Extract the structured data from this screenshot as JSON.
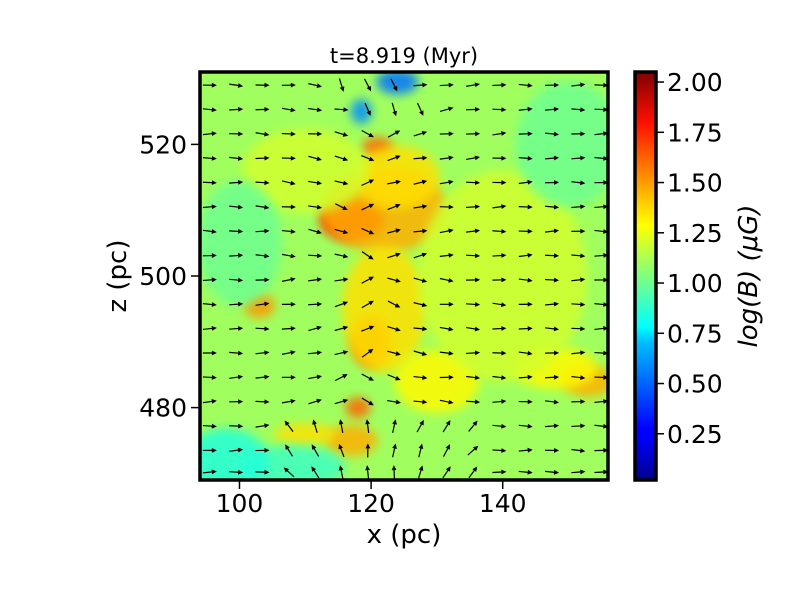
{
  "chart_data": {
    "type": "heatmap",
    "title": "t=8.919 (Myr)",
    "xlabel": "x (pc)",
    "ylabel": "z (pc)",
    "xlim": [
      94,
      156
    ],
    "ylim": [
      469,
      531
    ],
    "xticks": [
      100,
      120,
      140
    ],
    "yticks": [
      480,
      500,
      520
    ],
    "colorbar": {
      "label": "log(B) (μG)",
      "range": [
        0.02,
        2.05
      ],
      "ticks": [
        "0.25",
        "0.50",
        "0.75",
        "1.00",
        "1.25",
        "1.50",
        "1.75",
        "2.00"
      ],
      "colormap": "jet"
    },
    "field": {
      "background_value": 1.1,
      "features": [
        {
          "x": 117,
          "z": 508.5,
          "value": 1.75,
          "sx": 3.0,
          "sz": 2.0
        },
        {
          "x": 122,
          "z": 510,
          "value": 1.45,
          "sx": 6.0,
          "sz": 4.0
        },
        {
          "x": 120,
          "z": 490,
          "value": 1.55,
          "sx": 2.0,
          "sz": 2.5
        },
        {
          "x": 122,
          "z": 495,
          "value": 1.35,
          "sx": 4.0,
          "sz": 6.0
        },
        {
          "x": 121,
          "z": 519.5,
          "value": 1.6,
          "sx": 1.5,
          "sz": 1.0
        },
        {
          "x": 124,
          "z": 515,
          "value": 1.35,
          "sx": 4.0,
          "sz": 3.0
        },
        {
          "x": 103,
          "z": 495.5,
          "value": 1.5,
          "sx": 1.5,
          "sz": 1.2
        },
        {
          "x": 117,
          "z": 475,
          "value": 1.45,
          "sx": 2.5,
          "sz": 1.5
        },
        {
          "x": 110,
          "z": 476,
          "value": 1.35,
          "sx": 3.0,
          "sz": 1.0
        },
        {
          "x": 153,
          "z": 484,
          "value": 1.45,
          "sx": 2.5,
          "sz": 1.5
        },
        {
          "x": 148,
          "z": 486,
          "value": 1.3,
          "sx": 4.0,
          "sz": 2.0
        },
        {
          "x": 130,
          "z": 484,
          "value": 1.3,
          "sx": 4.0,
          "sz": 3.0
        },
        {
          "x": 118,
          "z": 480,
          "value": 1.6,
          "sx": 1.2,
          "sz": 1.0
        },
        {
          "x": 118.5,
          "z": 525,
          "value": 0.55,
          "sx": 1.0,
          "sz": 1.2
        },
        {
          "x": 124,
          "z": 529.5,
          "value": 0.5,
          "sx": 2.0,
          "sz": 1.2
        },
        {
          "x": 108,
          "z": 471,
          "value": 0.9,
          "sx": 5.0,
          "sz": 2.0
        },
        {
          "x": 98,
          "z": 472,
          "value": 0.85,
          "sx": 4.0,
          "sz": 3.0
        },
        {
          "x": 110,
          "z": 516,
          "value": 1.2,
          "sx": 6.0,
          "sz": 4.0
        },
        {
          "x": 140,
          "z": 500,
          "value": 1.2,
          "sx": 8.0,
          "sz": 10.0
        },
        {
          "x": 100,
          "z": 505,
          "value": 1.0,
          "sx": 4.0,
          "sz": 6.0
        },
        {
          "x": 150,
          "z": 520,
          "value": 1.0,
          "sx": 5.0,
          "sz": 6.0
        }
      ]
    },
    "vectors": {
      "grid_x": [
        95.5,
        99.5,
        103.5,
        107.5,
        111.5,
        115.5,
        119.5,
        123.5,
        127.5,
        131.5,
        135.5,
        139.5,
        143.5,
        147.5,
        151.5,
        155.0
      ],
      "grid_z": [
        529.0,
        525.3,
        521.6,
        517.9,
        514.2,
        510.5,
        506.8,
        503.1,
        499.4,
        495.7,
        492.0,
        488.3,
        484.6,
        480.9,
        477.2,
        473.5,
        470.2
      ],
      "direction": "mostly +x, converging toward the x≈120 filament, upward near the bottom center"
    }
  }
}
